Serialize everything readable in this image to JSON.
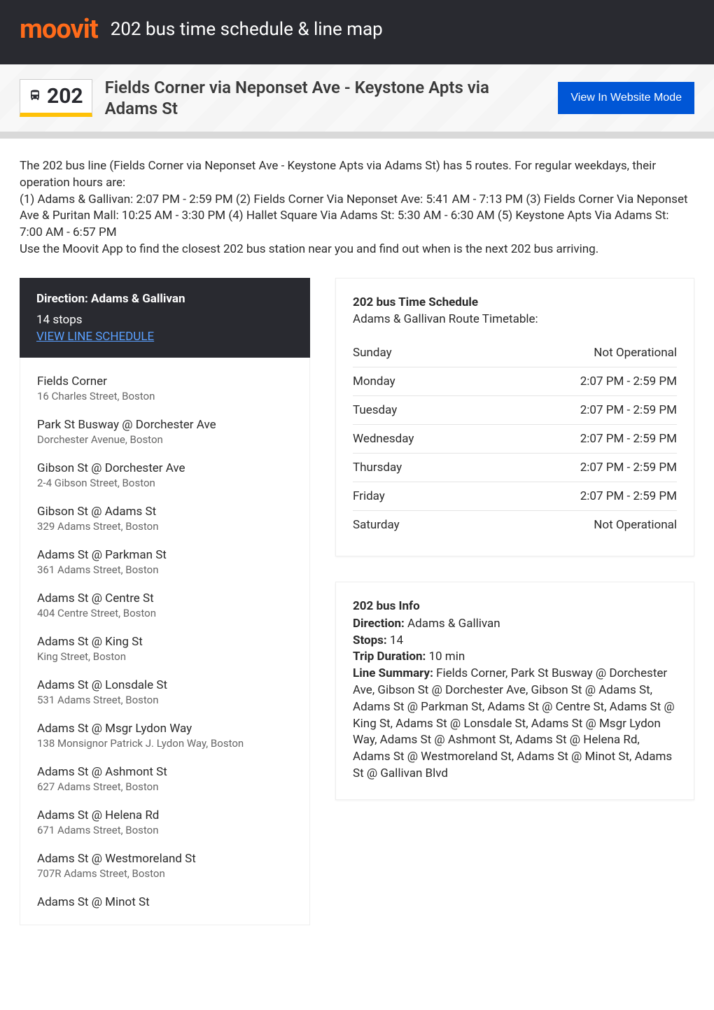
{
  "header": {
    "logo_text": "moovit",
    "title": "202 bus time schedule & line map"
  },
  "subheader": {
    "route_number": "202",
    "route_name": "Fields Corner via Neponset Ave - Keystone Apts via Adams St",
    "button_label": "View In Website Mode"
  },
  "description": {
    "p1": "The 202 bus line (Fields Corner via Neponset Ave - Keystone Apts via Adams St) has 5 routes. For regular weekdays, their operation hours are:",
    "p2": "(1) Adams & Gallivan: 2:07 PM - 2:59 PM (2) Fields Corner Via Neponset Ave: 5:41 AM - 7:13 PM (3) Fields Corner Via Neponset Ave & Puritan Mall: 10:25 AM - 3:30 PM (4) Hallet Square Via Adams St: 5:30 AM - 6:30 AM (5) Keystone Apts Via Adams St: 7:00 AM - 6:57 PM",
    "p3": "Use the Moovit App to find the closest 202 bus station near you and find out when is the next 202 bus arriving."
  },
  "direction": {
    "title": "Direction: Adams & Gallivan",
    "stops_count": "14 stops",
    "link_label": "VIEW LINE SCHEDULE"
  },
  "stops": [
    {
      "name": "Fields Corner",
      "address": "16 Charles Street, Boston"
    },
    {
      "name": "Park St Busway @ Dorchester Ave",
      "address": "Dorchester Avenue, Boston"
    },
    {
      "name": "Gibson St @ Dorchester Ave",
      "address": "2-4 Gibson Street, Boston"
    },
    {
      "name": "Gibson St @ Adams St",
      "address": "329 Adams Street, Boston"
    },
    {
      "name": "Adams St @ Parkman St",
      "address": "361 Adams Street, Boston"
    },
    {
      "name": "Adams St @ Centre St",
      "address": "404 Centre Street, Boston"
    },
    {
      "name": "Adams St @ King St",
      "address": "King Street, Boston"
    },
    {
      "name": "Adams St @ Lonsdale St",
      "address": "531 Adams Street, Boston"
    },
    {
      "name": "Adams St @ Msgr Lydon Way",
      "address": "138 Monsignor Patrick J. Lydon Way, Boston"
    },
    {
      "name": "Adams St @ Ashmont St",
      "address": "627 Adams Street, Boston"
    },
    {
      "name": "Adams St @ Helena Rd",
      "address": "671 Adams Street, Boston"
    },
    {
      "name": "Adams St @ Westmoreland St",
      "address": "707R Adams Street, Boston"
    },
    {
      "name": "Adams St @ Minot St",
      "address": ""
    }
  ],
  "schedule": {
    "title": "202 bus Time Schedule",
    "subtitle": "Adams & Gallivan Route Timetable:",
    "rows": [
      {
        "day": "Sunday",
        "hours": "Not Operational"
      },
      {
        "day": "Monday",
        "hours": "2:07 PM - 2:59 PM"
      },
      {
        "day": "Tuesday",
        "hours": "2:07 PM - 2:59 PM"
      },
      {
        "day": "Wednesday",
        "hours": "2:07 PM - 2:59 PM"
      },
      {
        "day": "Thursday",
        "hours": "2:07 PM - 2:59 PM"
      },
      {
        "day": "Friday",
        "hours": "2:07 PM - 2:59 PM"
      },
      {
        "day": "Saturday",
        "hours": "Not Operational"
      }
    ]
  },
  "info": {
    "title": "202 bus Info",
    "direction_label": "Direction:",
    "direction_value": " Adams & Gallivan",
    "stops_label": "Stops:",
    "stops_value": " 14",
    "duration_label": "Trip Duration:",
    "duration_value": " 10 min",
    "summary_label": "Line Summary:",
    "summary_value": " Fields Corner, Park St Busway @ Dorchester Ave, Gibson St @ Dorchester Ave, Gibson St @ Adams St, Adams St @ Parkman St, Adams St @ Centre St, Adams St @ King St, Adams St @ Lonsdale St, Adams St @ Msgr Lydon Way, Adams St @ Ashmont St, Adams St @ Helena Rd, Adams St @ Westmoreland St, Adams St @ Minot St, Adams St @ Gallivan Blvd"
  },
  "colors": {
    "header_bg": "#292a30",
    "accent_orange": "#ff6b1a",
    "button_blue": "#0056d6",
    "link_blue": "#5aa0ff",
    "badge_underline": "#ffc107"
  }
}
